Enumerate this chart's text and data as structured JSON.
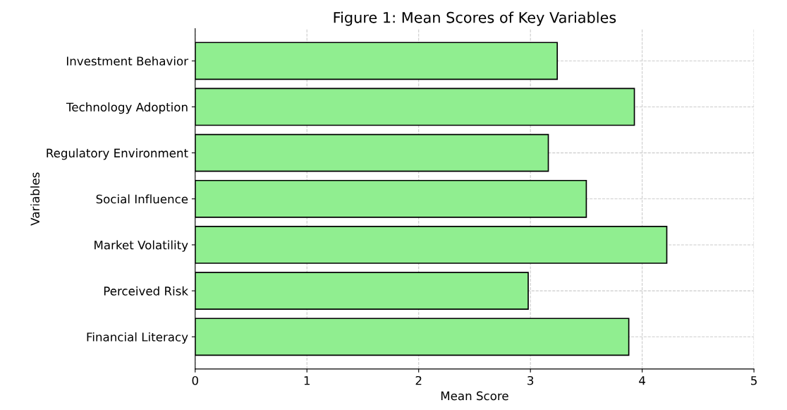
{
  "chart_data": {
    "type": "bar",
    "orientation": "horizontal",
    "title": "Figure 1: Mean Scores of Key Variables",
    "xlabel": "Mean Score",
    "ylabel": "Variables",
    "categories": [
      "Investment Behavior",
      "Technology Adoption",
      "Regulatory Environment",
      "Social Influence",
      "Market Volatility",
      "Perceived Risk",
      "Financial Literacy"
    ],
    "values": [
      3.24,
      3.93,
      3.16,
      3.5,
      4.22,
      2.98,
      3.88
    ],
    "color": "#90ee90",
    "xlim": [
      0,
      5
    ],
    "xticks": [
      0,
      1,
      2,
      3,
      4,
      5
    ],
    "grid": true,
    "line_style": "dashed"
  }
}
